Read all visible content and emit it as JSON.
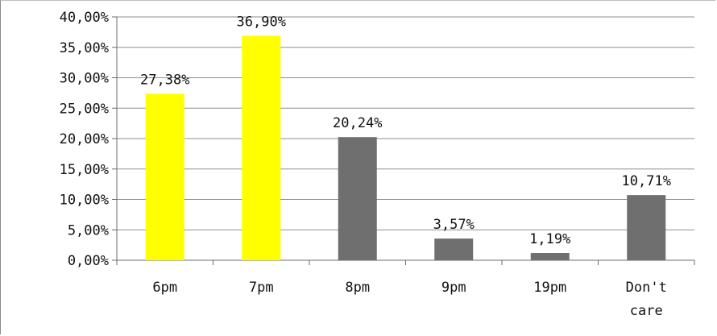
{
  "chart_data": {
    "type": "bar",
    "categories": [
      [
        "6pm"
      ],
      [
        "7pm"
      ],
      [
        "8pm"
      ],
      [
        "9pm"
      ],
      [
        "19pm"
      ],
      [
        "Don't",
        "care"
      ]
    ],
    "values": [
      27.38,
      36.9,
      20.24,
      3.57,
      1.19,
      10.71
    ],
    "data_labels": [
      "27,38%",
      "36,90%",
      "20,24%",
      "3,57%",
      "1,19%",
      "10,71%"
    ],
    "y_ticks": [
      {
        "value": 0,
        "label": "0,00%"
      },
      {
        "value": 5,
        "label": "5,00%"
      },
      {
        "value": 10,
        "label": "10,00%"
      },
      {
        "value": 15,
        "label": "15,00%"
      },
      {
        "value": 20,
        "label": "20,00%"
      },
      {
        "value": 25,
        "label": "25,00%"
      },
      {
        "value": 30,
        "label": "30,00%"
      },
      {
        "value": 35,
        "label": "35,00%"
      },
      {
        "value": 40,
        "label": "40,00%"
      }
    ],
    "ylim": [
      0,
      40
    ],
    "grid": true,
    "bar_colors": [
      "#ffff00",
      "#ffff00",
      "#6f6f6f",
      "#6f6f6f",
      "#6f6f6f",
      "#6f6f6f"
    ],
    "grid_color": "#8f8f8f",
    "axis_color": "#6b6b6b"
  }
}
